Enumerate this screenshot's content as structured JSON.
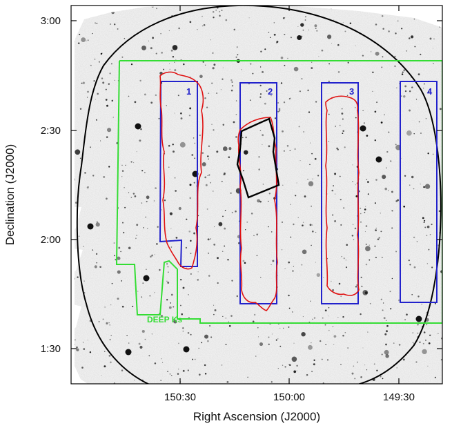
{
  "chart_data": {
    "type": "scatter",
    "title": "",
    "xlabel": "Right Ascension (J2000)",
    "ylabel": "Declination (J2000)",
    "x_ticks": [
      "150:30",
      "150:00",
      "149:30"
    ],
    "y_ticks": [
      "3:00",
      "2:30",
      "2:00",
      "1:30"
    ],
    "grid": false,
    "colors": {
      "strip_boxes": "#2222cc",
      "coverage_contours": "#e01010",
      "deep_region": "#33dd33",
      "circle_and_patch": "#000000",
      "background_image": "inverted grayscale star field"
    },
    "strips": [
      {
        "label": "1"
      },
      {
        "label": "2"
      },
      {
        "label": "3"
      },
      {
        "label": "4"
      }
    ],
    "region_label": "DEEP Ks"
  }
}
